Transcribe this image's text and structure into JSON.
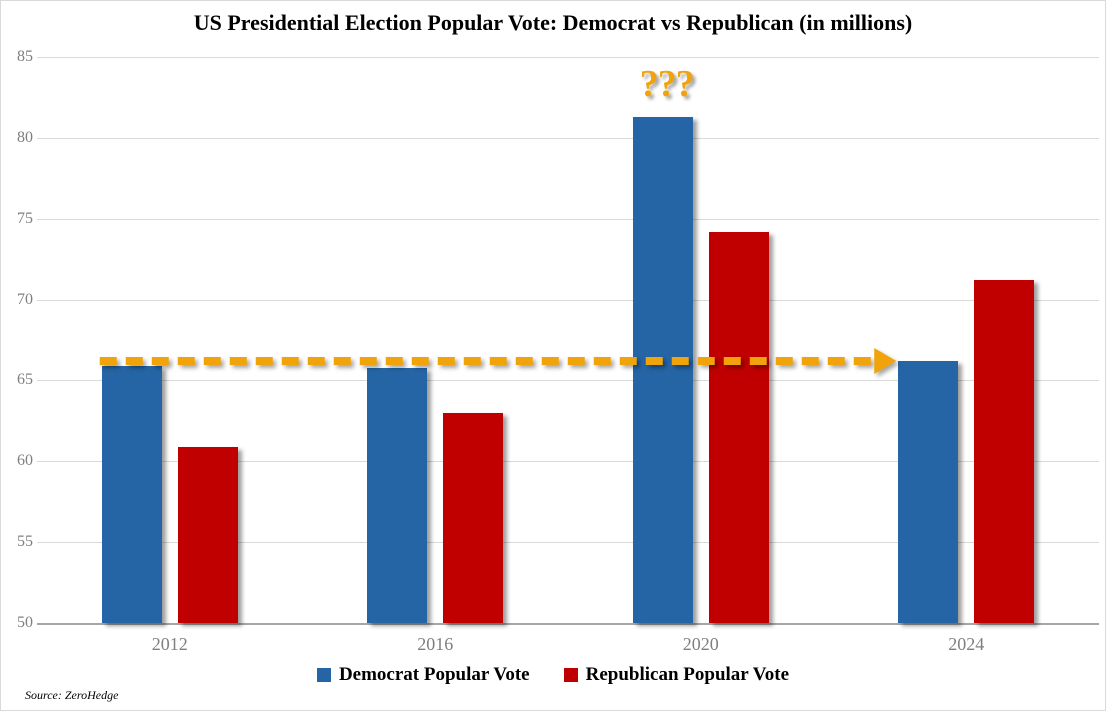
{
  "chart_data": {
    "type": "bar",
    "title": "US Presidential Election Popular Vote: Democrat vs Republican (in millions)",
    "categories": [
      "2012",
      "2016",
      "2020",
      "2024"
    ],
    "series": [
      {
        "name": "Democrat Popular Vote",
        "color": "#2565a6",
        "values": [
          65.9,
          65.8,
          81.3,
          66.2
        ]
      },
      {
        "name": "Republican Popular Vote",
        "color": "#c00000",
        "values": [
          60.9,
          63.0,
          74.2,
          71.2
        ]
      }
    ],
    "ylim": [
      50,
      85
    ],
    "yticks": [
      50,
      55,
      60,
      65,
      70,
      75,
      80,
      85
    ],
    "grid": true,
    "legend_position": "bottom",
    "axis_label_color": "#7f7f7f",
    "gridline_color": "#d9d9d9",
    "annotations": {
      "question_marks": {
        "text": "???",
        "color": "#f0a30a",
        "above_category": "2020",
        "series": "Democrat Popular Vote"
      },
      "dashed_arrow": {
        "color": "#f0a30a",
        "value": 66.2,
        "from_category": "2012",
        "to_category": "2024",
        "style": "dashed",
        "arrowhead": "right"
      }
    },
    "source": "Source: ZeroHedge"
  }
}
